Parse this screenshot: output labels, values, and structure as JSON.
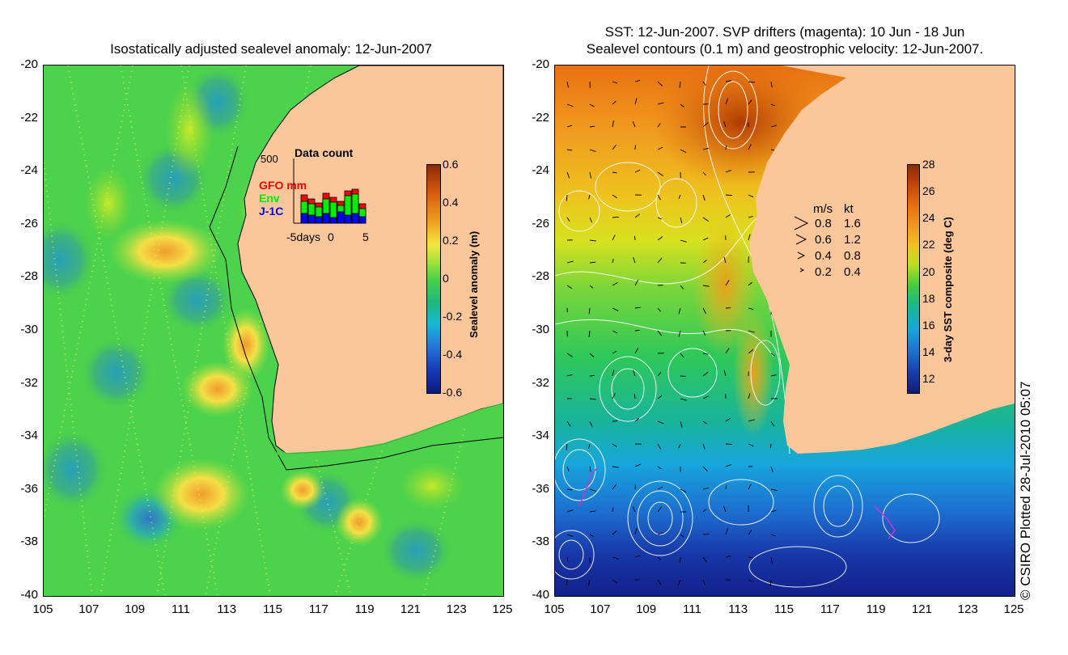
{
  "left_panel": {
    "title": "Isostatically adjusted sealevel anomaly: 12-Jun-2007",
    "y_ticks": [
      "-20",
      "-22",
      "-24",
      "-26",
      "-28",
      "-30",
      "-32",
      "-34",
      "-36",
      "-38",
      "-40"
    ],
    "x_ticks": [
      "105",
      "107",
      "109",
      "111",
      "113",
      "115",
      "117",
      "119",
      "121",
      "123",
      "125"
    ],
    "colorbar": {
      "label": "Sealevel anomaly (m)",
      "ticks": [
        "0.6",
        "0.4",
        "0.2",
        "0",
        "-0.2",
        "-0.4",
        "-0.6"
      ]
    },
    "inset": {
      "title": "Data count",
      "ymax_label": "500",
      "legend": [
        {
          "label": "GFO mm",
          "color": "#ff0000"
        },
        {
          "label": "Env",
          "color": "#00ee00"
        },
        {
          "label": "J-1C",
          "color": "#0000ff"
        }
      ],
      "x_labels": [
        "-5days",
        "0",
        "5"
      ]
    }
  },
  "right_panel": {
    "title_line1": "SST: 12-Jun-2007. SVP drifters (magenta): 10 Jun - 18 Jun",
    "title_line2": "Sealevel contours (0.1 m) and geostrophic velocity: 12-Jun-2007.",
    "y_ticks": [
      "-20",
      "-22",
      "-24",
      "-26",
      "-28",
      "-30",
      "-32",
      "-34",
      "-36",
      "-38",
      "-40"
    ],
    "x_ticks": [
      "105",
      "107",
      "109",
      "111",
      "113",
      "115",
      "117",
      "119",
      "121",
      "123",
      "125"
    ],
    "colorbar": {
      "label": "3-day SST composite (deg C)",
      "ticks": [
        "28",
        "26",
        "24",
        "22",
        "20",
        "18",
        "16",
        "14",
        "12"
      ]
    },
    "velocity_legend": {
      "header_ms": "m/s",
      "header_kt": "kt",
      "rows": [
        {
          "ms": "0.8",
          "kt": "1.6"
        },
        {
          "ms": "0.6",
          "kt": "1.2"
        },
        {
          "ms": "0.4",
          "kt": "0.8"
        },
        {
          "ms": "0.2",
          "kt": "0.4"
        }
      ]
    }
  },
  "copyright": "© CSIRO Plotted 28-Jul-2010 05:07",
  "colors": {
    "land": "#fbc79a",
    "sst_hot": "#b03a00",
    "sla_base": "#4cd24c"
  }
}
